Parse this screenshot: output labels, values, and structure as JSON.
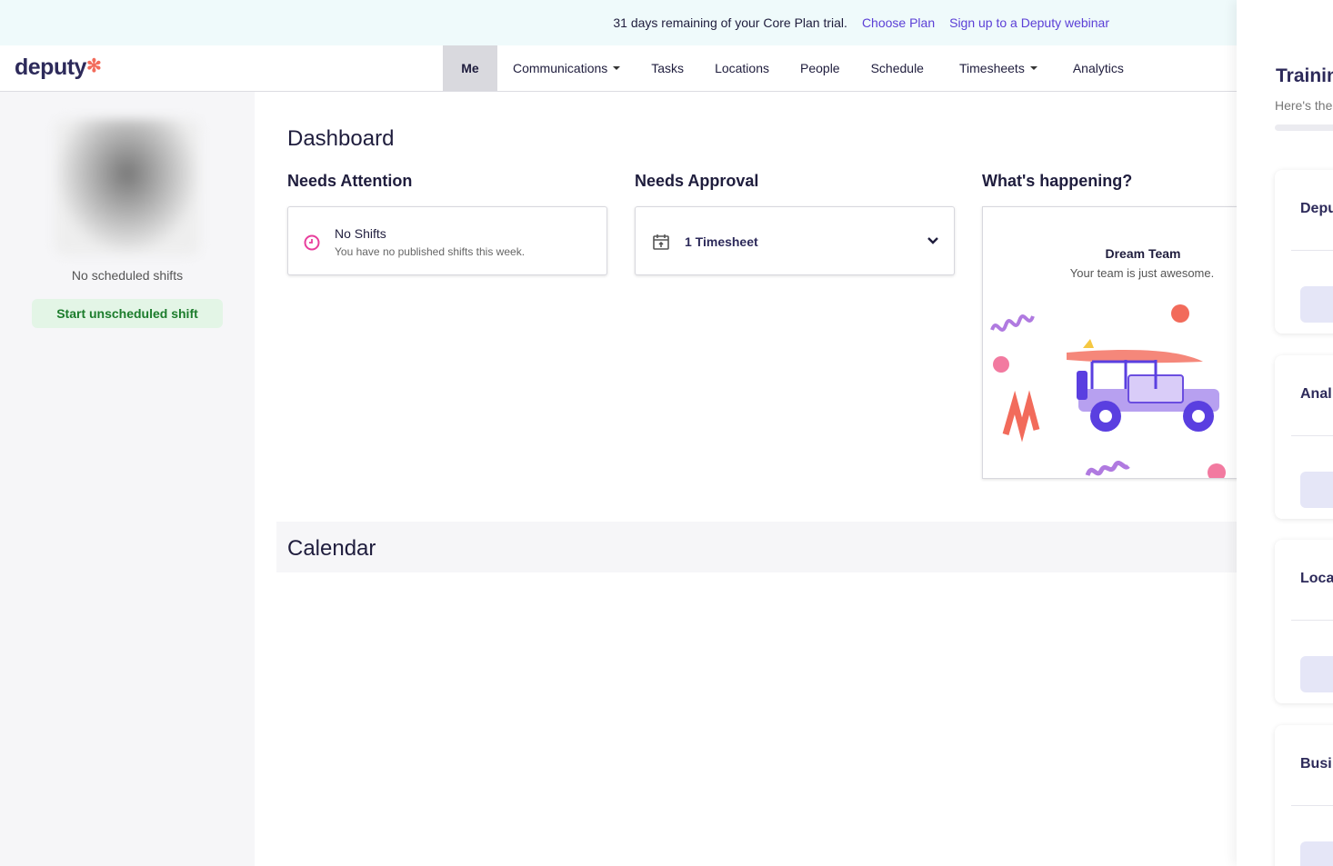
{
  "banner": {
    "text": "31 days remaining of your Core Plan trial.",
    "choose_plan": "Choose Plan",
    "webinar": "Sign up to a Deputy webinar"
  },
  "nav": {
    "logo": "deputy",
    "items": [
      {
        "label": "Me"
      },
      {
        "label": "Communications"
      },
      {
        "label": "Tasks"
      },
      {
        "label": "Locations"
      },
      {
        "label": "People"
      },
      {
        "label": "Schedule"
      },
      {
        "label": "Timesheets"
      },
      {
        "label": "Analytics"
      }
    ]
  },
  "sidebar": {
    "status": "No scheduled shifts",
    "start_button": "Start unscheduled shift"
  },
  "main": {
    "title": "Dashboard",
    "needs_attention": {
      "heading": "Needs Attention",
      "card_title": "No Shifts",
      "card_text": "You have no published shifts this week."
    },
    "needs_approval": {
      "heading": "Needs Approval",
      "card_title": "1 Timesheet"
    },
    "whats_happening": {
      "heading": "What's happening?",
      "title": "Dream Team",
      "text": "Your team is just awesome."
    },
    "calendar": "Calendar"
  },
  "panel": {
    "title": "Trainin",
    "subtitle": "Here's the",
    "cards": [
      "Depu",
      "Anal",
      "Loca",
      "Busi"
    ]
  },
  "colors": {
    "accent": "#5b3fd6",
    "brand": "#2d2a5a",
    "logo_mark": "#f26b5b",
    "success": "#1c7c2c",
    "clock": "#e83e9c"
  }
}
